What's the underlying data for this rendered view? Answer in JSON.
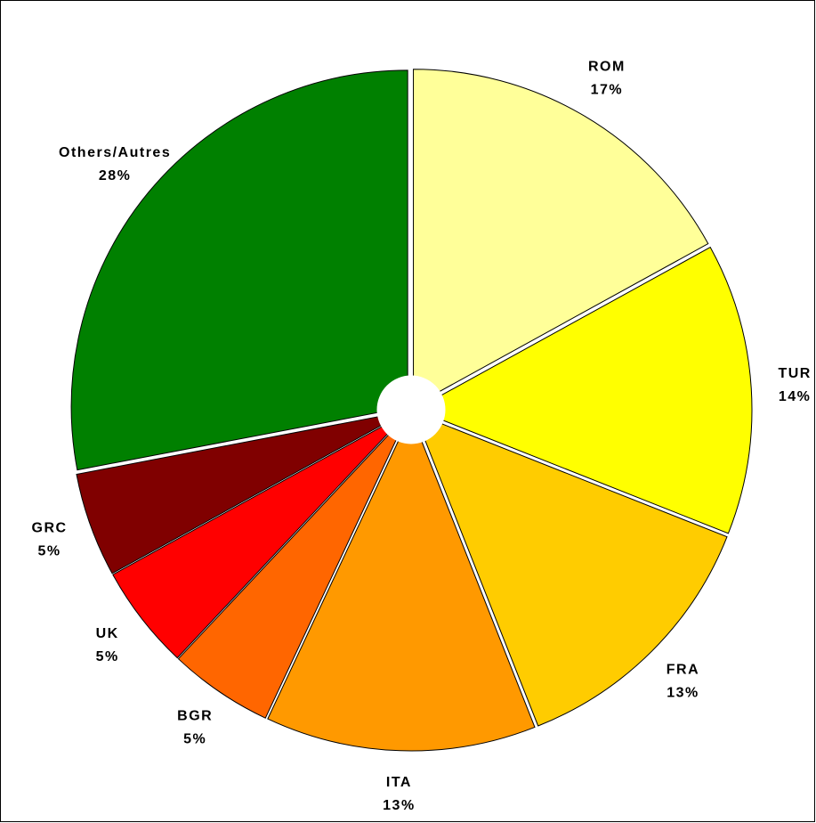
{
  "chart_data": {
    "type": "pie",
    "categories": [
      "ROM",
      "TUR",
      "FRA",
      "ITA",
      "BGR",
      "UK",
      "GRC",
      "Others/Autres"
    ],
    "values": [
      17,
      14,
      13,
      13,
      5,
      5,
      5,
      28
    ],
    "value_labels": [
      "17%",
      "14%",
      "13%",
      "13%",
      "5%",
      "5%",
      "5%",
      "28%"
    ],
    "colors": [
      "#ffff99",
      "#ffff00",
      "#ffcc00",
      "#ff9900",
      "#ff6600",
      "#ff0000",
      "#800000",
      "#008000"
    ]
  }
}
